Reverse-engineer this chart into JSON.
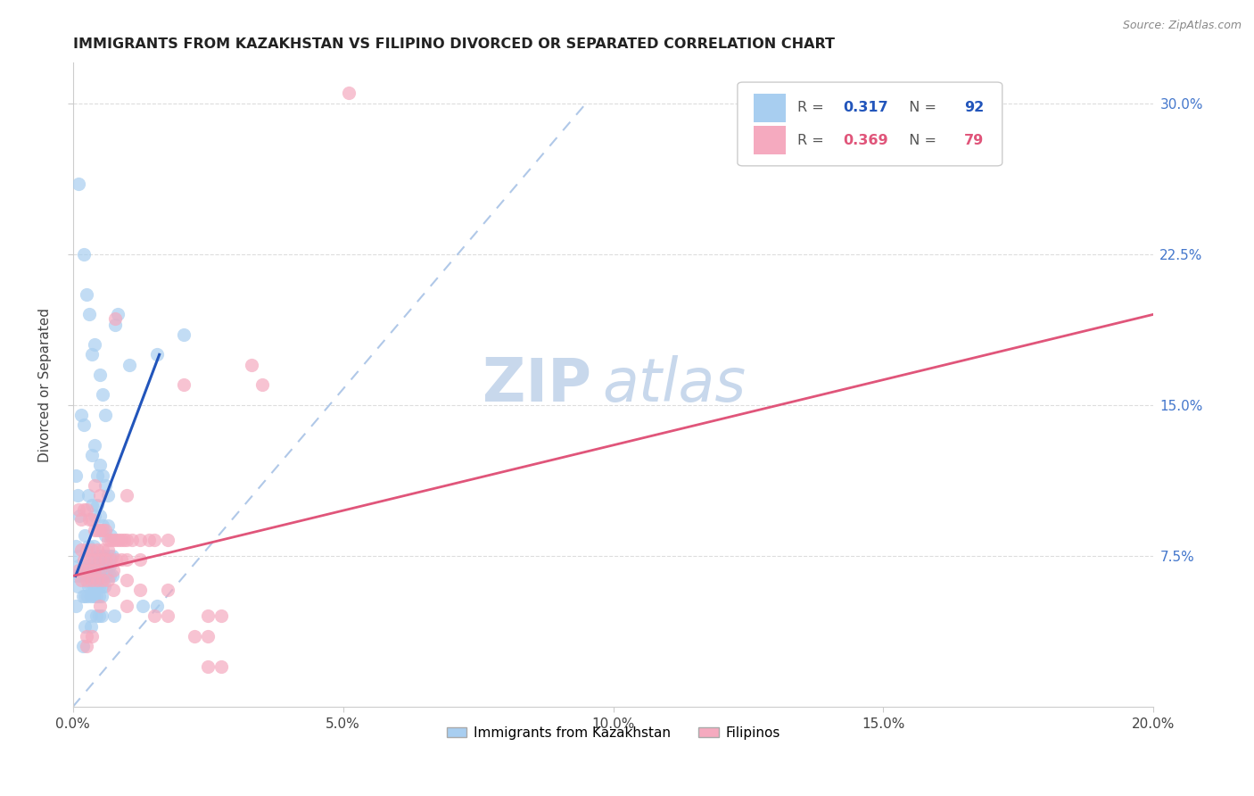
{
  "title": "IMMIGRANTS FROM KAZAKHSTAN VS FILIPINO DIVORCED OR SEPARATED CORRELATION CHART",
  "source": "Source: ZipAtlas.com",
  "xlabel_ticks": [
    "0.0%",
    "5.0%",
    "10.0%",
    "15.0%",
    "20.0%"
  ],
  "xlabel_values": [
    0.0,
    5.0,
    10.0,
    15.0,
    20.0
  ],
  "ylabel_ticks": [
    "7.5%",
    "15.0%",
    "22.5%",
    "30.0%"
  ],
  "ylabel_values": [
    7.5,
    15.0,
    22.5,
    30.0
  ],
  "xlim": [
    0.0,
    20.0
  ],
  "ylim": [
    0.0,
    32.0
  ],
  "legend_blue_r": "0.317",
  "legend_blue_n": "92",
  "legend_pink_r": "0.369",
  "legend_pink_n": "79",
  "blue_color": "#a8cef0",
  "pink_color": "#f5aabf",
  "blue_line_color": "#2255bb",
  "pink_line_color": "#e0557a",
  "ref_line_color": "#b0c8e8",
  "watermark_zip": "ZIP",
  "watermark_atlas": "atlas",
  "watermark_color": "#c8d8ec",
  "blue_scatter": [
    [
      0.05,
      11.5
    ],
    [
      0.1,
      26.0
    ],
    [
      0.2,
      22.5
    ],
    [
      0.25,
      20.5
    ],
    [
      0.3,
      19.5
    ],
    [
      0.35,
      17.5
    ],
    [
      0.4,
      18.0
    ],
    [
      0.5,
      16.5
    ],
    [
      0.55,
      15.5
    ],
    [
      0.6,
      14.5
    ],
    [
      0.15,
      14.5
    ],
    [
      0.2,
      14.0
    ],
    [
      0.35,
      12.5
    ],
    [
      0.4,
      13.0
    ],
    [
      0.45,
      11.5
    ],
    [
      0.5,
      12.0
    ],
    [
      0.55,
      11.5
    ],
    [
      0.6,
      11.0
    ],
    [
      0.65,
      10.5
    ],
    [
      0.28,
      10.5
    ],
    [
      0.35,
      10.0
    ],
    [
      0.4,
      9.5
    ],
    [
      0.45,
      10.0
    ],
    [
      0.5,
      9.5
    ],
    [
      0.55,
      9.0
    ],
    [
      0.6,
      8.5
    ],
    [
      0.65,
      9.0
    ],
    [
      0.7,
      8.5
    ],
    [
      0.22,
      8.5
    ],
    [
      0.28,
      8.0
    ],
    [
      0.33,
      7.5
    ],
    [
      0.38,
      8.0
    ],
    [
      0.43,
      7.5
    ],
    [
      0.48,
      7.5
    ],
    [
      0.53,
      7.5
    ],
    [
      0.58,
      7.5
    ],
    [
      0.63,
      7.5
    ],
    [
      0.68,
      7.5
    ],
    [
      0.73,
      7.5
    ],
    [
      0.18,
      7.0
    ],
    [
      0.22,
      7.0
    ],
    [
      0.27,
      7.0
    ],
    [
      0.33,
      7.0
    ],
    [
      0.38,
      7.0
    ],
    [
      0.43,
      7.0
    ],
    [
      0.48,
      7.0
    ],
    [
      0.53,
      7.0
    ],
    [
      0.58,
      7.0
    ],
    [
      0.63,
      7.0
    ],
    [
      0.68,
      7.0
    ],
    [
      0.12,
      6.5
    ],
    [
      0.18,
      6.5
    ],
    [
      0.22,
      6.5
    ],
    [
      0.27,
      6.5
    ],
    [
      0.33,
      6.5
    ],
    [
      0.38,
      6.5
    ],
    [
      0.43,
      6.5
    ],
    [
      0.48,
      6.5
    ],
    [
      0.53,
      6.5
    ],
    [
      0.58,
      6.5
    ],
    [
      0.63,
      6.5
    ],
    [
      0.68,
      6.5
    ],
    [
      0.73,
      6.5
    ],
    [
      0.28,
      6.0
    ],
    [
      0.33,
      6.0
    ],
    [
      0.38,
      6.0
    ],
    [
      0.43,
      6.0
    ],
    [
      0.48,
      6.0
    ],
    [
      0.53,
      6.0
    ],
    [
      0.58,
      6.0
    ],
    [
      0.18,
      5.5
    ],
    [
      0.22,
      5.5
    ],
    [
      0.27,
      5.5
    ],
    [
      0.33,
      5.5
    ],
    [
      0.38,
      5.5
    ],
    [
      0.43,
      5.5
    ],
    [
      0.48,
      5.5
    ],
    [
      0.53,
      5.5
    ],
    [
      1.3,
      5.0
    ],
    [
      1.55,
      5.0
    ],
    [
      0.33,
      4.5
    ],
    [
      0.43,
      4.5
    ],
    [
      0.48,
      4.5
    ],
    [
      0.53,
      4.5
    ],
    [
      0.77,
      4.5
    ],
    [
      0.22,
      4.0
    ],
    [
      0.33,
      4.0
    ],
    [
      0.18,
      3.0
    ],
    [
      0.78,
      19.0
    ],
    [
      0.83,
      19.5
    ],
    [
      1.05,
      17.0
    ],
    [
      1.55,
      17.5
    ],
    [
      2.05,
      18.5
    ],
    [
      0.08,
      10.5
    ],
    [
      0.12,
      9.5
    ],
    [
      0.05,
      8.0
    ],
    [
      0.08,
      7.5
    ],
    [
      0.1,
      7.0
    ],
    [
      0.05,
      6.5
    ],
    [
      0.08,
      6.0
    ],
    [
      0.05,
      5.0
    ]
  ],
  "pink_scatter": [
    [
      0.1,
      9.8
    ],
    [
      0.15,
      9.3
    ],
    [
      0.2,
      9.8
    ],
    [
      0.25,
      9.8
    ],
    [
      0.3,
      9.3
    ],
    [
      0.35,
      9.3
    ],
    [
      0.4,
      8.8
    ],
    [
      0.45,
      8.8
    ],
    [
      0.5,
      8.8
    ],
    [
      0.55,
      8.8
    ],
    [
      0.6,
      8.8
    ],
    [
      0.65,
      8.3
    ],
    [
      0.7,
      8.3
    ],
    [
      0.75,
      8.3
    ],
    [
      0.8,
      8.3
    ],
    [
      0.85,
      8.3
    ],
    [
      0.9,
      8.3
    ],
    [
      0.95,
      8.3
    ],
    [
      1.0,
      8.3
    ],
    [
      1.1,
      8.3
    ],
    [
      1.25,
      8.3
    ],
    [
      1.4,
      8.3
    ],
    [
      1.5,
      8.3
    ],
    [
      1.75,
      8.3
    ],
    [
      0.15,
      7.8
    ],
    [
      0.25,
      7.8
    ],
    [
      0.35,
      7.8
    ],
    [
      0.45,
      7.8
    ],
    [
      0.55,
      7.8
    ],
    [
      0.65,
      7.8
    ],
    [
      0.2,
      7.3
    ],
    [
      0.3,
      7.3
    ],
    [
      0.4,
      7.3
    ],
    [
      0.5,
      7.3
    ],
    [
      0.6,
      7.3
    ],
    [
      0.7,
      7.3
    ],
    [
      0.8,
      7.3
    ],
    [
      0.9,
      7.3
    ],
    [
      1.0,
      7.3
    ],
    [
      1.25,
      7.3
    ],
    [
      0.1,
      6.8
    ],
    [
      0.2,
      6.8
    ],
    [
      0.3,
      6.8
    ],
    [
      0.4,
      6.8
    ],
    [
      0.5,
      6.8
    ],
    [
      0.75,
      6.8
    ],
    [
      1.0,
      6.3
    ],
    [
      0.15,
      6.3
    ],
    [
      0.25,
      6.3
    ],
    [
      0.35,
      6.3
    ],
    [
      0.45,
      6.3
    ],
    [
      0.55,
      6.3
    ],
    [
      0.65,
      6.3
    ],
    [
      0.75,
      5.8
    ],
    [
      1.25,
      5.8
    ],
    [
      1.75,
      5.8
    ],
    [
      0.5,
      5.0
    ],
    [
      1.0,
      5.0
    ],
    [
      1.5,
      4.5
    ],
    [
      1.75,
      4.5
    ],
    [
      2.5,
      4.5
    ],
    [
      2.75,
      4.5
    ],
    [
      3.5,
      16.0
    ],
    [
      5.1,
      30.5
    ],
    [
      0.78,
      19.3
    ],
    [
      3.3,
      17.0
    ],
    [
      2.05,
      16.0
    ],
    [
      0.4,
      11.0
    ],
    [
      0.5,
      10.5
    ],
    [
      1.0,
      10.5
    ],
    [
      0.25,
      3.5
    ],
    [
      0.35,
      3.5
    ],
    [
      2.25,
      3.5
    ],
    [
      2.5,
      3.5
    ],
    [
      0.25,
      3.0
    ],
    [
      2.5,
      2.0
    ],
    [
      2.75,
      2.0
    ]
  ],
  "blue_line_x": [
    0.05,
    1.6
  ],
  "blue_line_y": [
    6.5,
    17.5
  ],
  "pink_line_x": [
    0.0,
    20.0
  ],
  "pink_line_y": [
    6.5,
    19.5
  ],
  "ref_line_x": [
    0.0,
    9.5
  ],
  "ref_line_y": [
    0.0,
    30.0
  ]
}
